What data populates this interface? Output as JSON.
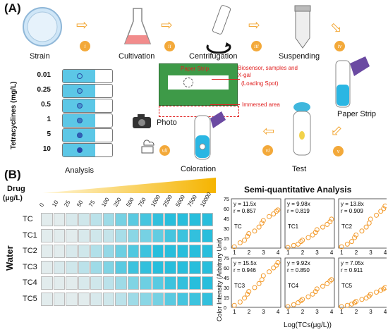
{
  "panel_a": {
    "label": "(A)",
    "stages": [
      "Strain",
      "Cultivation",
      "Centrifugation",
      "Suspending",
      "Paper Strip",
      "Test",
      "Coloration",
      "Analysis"
    ],
    "steps": [
      "i",
      "ii",
      "iii",
      "iv",
      "v",
      "vi",
      "vii"
    ],
    "photo_label": "Photo",
    "ylabel": "Tetracyclines (mg/L)",
    "concentrations": [
      "0.01",
      "0.25",
      "0.5",
      "1",
      "5",
      "10"
    ],
    "inset": {
      "title": "Paper Strip",
      "loading_note": "Biosensor, samples and X-gal",
      "loading_spot": "(Loading Spot)",
      "immersed_area": "Immersed area"
    }
  },
  "panel_b": {
    "label": "(B)",
    "drug_label": "Drug",
    "drug_unit": "(μg/L)",
    "drug_concentrations": [
      "0",
      "10",
      "25",
      "50",
      "75",
      "100",
      "250",
      "500",
      "750",
      "1000",
      "2500",
      "5000",
      "7500",
      "10000"
    ],
    "rows": [
      "TC",
      "TC1",
      "TC2",
      "TC3",
      "TC4",
      "TC5"
    ],
    "matrix_label": "Water",
    "intensity": [
      [
        0.05,
        0.05,
        0.1,
        0.15,
        0.25,
        0.4,
        0.6,
        0.75,
        0.85,
        0.95,
        1,
        1,
        1,
        1
      ],
      [
        0.05,
        0.05,
        0.05,
        0.1,
        0.15,
        0.2,
        0.35,
        0.5,
        0.6,
        0.7,
        0.85,
        0.9,
        0.95,
        1
      ],
      [
        0.05,
        0.05,
        0.1,
        0.15,
        0.3,
        0.45,
        0.65,
        0.8,
        0.9,
        1,
        1,
        1,
        1,
        1
      ],
      [
        0.05,
        0.1,
        0.15,
        0.25,
        0.4,
        0.55,
        0.75,
        0.9,
        0.95,
        1,
        1,
        1,
        1,
        1
      ],
      [
        0.05,
        0.05,
        0.05,
        0.1,
        0.15,
        0.25,
        0.4,
        0.55,
        0.65,
        0.75,
        0.9,
        0.95,
        1,
        1
      ],
      [
        0.05,
        0.05,
        0.05,
        0.05,
        0.1,
        0.15,
        0.25,
        0.4,
        0.5,
        0.6,
        0.75,
        0.85,
        0.9,
        0.95
      ]
    ]
  },
  "chart_data": {
    "type": "scatter",
    "title": "Semi-quantitative Analysis",
    "xlabel": "Log(TCs(μg/L))",
    "ylabel": "Color Intensity (Arbitrary Unit)",
    "xticks": [
      "1",
      "2",
      "3",
      "4"
    ],
    "yticks": [
      "0",
      "15",
      "30",
      "45",
      "60",
      "75"
    ],
    "xlim": [
      0.8,
      4.2
    ],
    "ylim": [
      0,
      75
    ],
    "marker_color": "#f39a2a",
    "panels": [
      {
        "name": "TC",
        "eq": "y = 11.5x",
        "r": "r = 0.857",
        "x": [
          1.0,
          1.4,
          1.7,
          1.9,
          2.0,
          2.4,
          2.7,
          2.9,
          3.0,
          3.4,
          3.7,
          3.9,
          4.0
        ],
        "y": [
          2,
          8,
          12,
          18,
          22,
          26,
          32,
          38,
          42,
          48,
          52,
          56,
          58
        ]
      },
      {
        "name": "TC1",
        "eq": "y = 9.98x",
        "r": "r = 0.819",
        "x": [
          1.0,
          1.4,
          1.7,
          1.9,
          2.0,
          2.4,
          2.7,
          2.9,
          3.0,
          3.4,
          3.7,
          3.9,
          4.0
        ],
        "y": [
          1,
          4,
          6,
          10,
          12,
          16,
          20,
          24,
          28,
          32,
          36,
          40,
          44
        ]
      },
      {
        "name": "TC2",
        "eq": "y = 13.8x",
        "r": "r = 0.909",
        "x": [
          1.0,
          1.4,
          1.7,
          1.9,
          2.0,
          2.4,
          2.7,
          2.9,
          3.0,
          3.4,
          3.7,
          3.9,
          4.0
        ],
        "y": [
          2,
          6,
          10,
          16,
          20,
          26,
          32,
          38,
          44,
          50,
          56,
          60,
          64
        ]
      },
      {
        "name": "TC3",
        "eq": "y = 15.5x",
        "r": "r = 0.946",
        "x": [
          1.0,
          1.4,
          1.7,
          1.9,
          2.0,
          2.4,
          2.7,
          2.9,
          3.0,
          3.4,
          3.7,
          3.9,
          4.0
        ],
        "y": [
          3,
          8,
          14,
          20,
          24,
          30,
          36,
          42,
          48,
          54,
          60,
          64,
          68
        ]
      },
      {
        "name": "TC4",
        "eq": "y = 9.92x",
        "r": "r = 0.850",
        "x": [
          1.0,
          1.4,
          1.7,
          1.9,
          2.0,
          2.4,
          2.7,
          2.9,
          3.0,
          3.4,
          3.7,
          3.9,
          4.0
        ],
        "y": [
          1,
          4,
          7,
          10,
          12,
          16,
          20,
          24,
          28,
          32,
          36,
          40,
          42
        ]
      },
      {
        "name": "TC5",
        "eq": "y = 7.05x",
        "r": "r = 0.911",
        "x": [
          1.0,
          1.4,
          1.7,
          1.9,
          2.0,
          2.4,
          2.7,
          2.9,
          3.0,
          3.4,
          3.7,
          3.9,
          4.0
        ],
        "y": [
          1,
          3,
          5,
          7,
          9,
          12,
          14,
          17,
          20,
          23,
          26,
          28,
          30
        ]
      }
    ]
  }
}
